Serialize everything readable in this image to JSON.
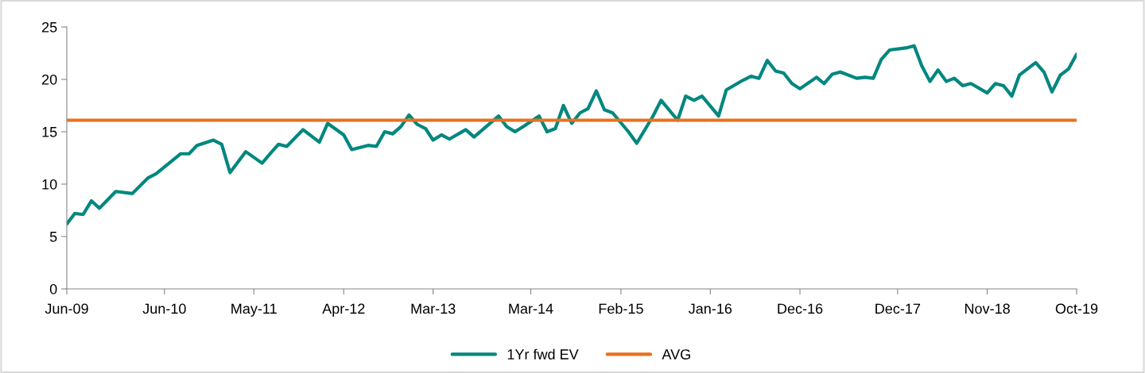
{
  "chart_data": {
    "type": "line",
    "x": [
      "2009-06",
      "2009-07",
      "2009-08",
      "2009-09",
      "2009-10",
      "2009-12",
      "2010-02",
      "2010-04",
      "2010-05",
      "2010-08",
      "2010-09",
      "2010-10",
      "2010-12",
      "2011-01",
      "2011-02",
      "2011-04",
      "2011-06",
      "2011-07",
      "2011-08",
      "2011-09",
      "2011-11",
      "2012-01",
      "2012-02",
      "2012-04",
      "2012-05",
      "2012-07",
      "2012-08",
      "2012-09",
      "2012-10",
      "2012-11",
      "2012-12",
      "2013-01",
      "2013-02",
      "2013-03",
      "2013-04",
      "2013-05",
      "2013-07",
      "2013-08",
      "2013-11",
      "2013-12",
      "2014-01",
      "2014-02",
      "2014-04",
      "2014-05",
      "2014-06",
      "2014-07",
      "2014-08",
      "2014-09",
      "2014-10",
      "2014-11",
      "2014-12",
      "2015-01",
      "2015-03",
      "2015-04",
      "2015-06",
      "2015-07",
      "2015-09",
      "2015-10",
      "2015-11",
      "2015-12",
      "2016-02",
      "2016-03",
      "2016-05",
      "2016-06",
      "2016-07",
      "2016-08",
      "2016-09",
      "2016-10",
      "2016-11",
      "2016-12",
      "2017-02",
      "2017-03",
      "2017-04",
      "2017-05",
      "2017-07",
      "2017-08",
      "2017-09",
      "2017-10",
      "2017-11",
      "2018-01",
      "2018-02",
      "2018-03",
      "2018-04",
      "2018-05",
      "2018-06",
      "2018-07",
      "2018-08",
      "2018-09",
      "2018-11",
      "2018-12",
      "2019-01",
      "2019-02",
      "2019-03",
      "2019-05",
      "2019-06",
      "2019-07",
      "2019-08",
      "2019-09",
      "2019-10"
    ],
    "series": [
      {
        "name": "1Yr fwd EV",
        "color": "#00877f",
        "values": [
          6.2,
          7.2,
          7.1,
          8.4,
          7.7,
          9.3,
          9.1,
          10.6,
          11.0,
          12.9,
          12.9,
          13.7,
          14.2,
          13.8,
          11.1,
          13.1,
          12.0,
          12.9,
          13.8,
          13.6,
          15.2,
          14.0,
          15.8,
          14.7,
          13.3,
          13.7,
          13.6,
          15.0,
          14.8,
          15.5,
          16.6,
          15.7,
          15.3,
          14.2,
          14.7,
          14.3,
          15.2,
          14.5,
          16.5,
          15.5,
          15.0,
          15.5,
          16.5,
          15.0,
          15.3,
          17.5,
          15.8,
          16.8,
          17.2,
          18.9,
          17.1,
          16.8,
          15.0,
          13.9,
          16.5,
          18.0,
          16.1,
          18.4,
          18.0,
          18.4,
          16.5,
          19.0,
          19.9,
          20.3,
          20.1,
          21.8,
          20.8,
          20.6,
          19.6,
          19.1,
          20.2,
          19.6,
          20.5,
          20.7,
          20.1,
          20.2,
          20.1,
          21.9,
          22.8,
          23.0,
          23.2,
          21.3,
          19.8,
          20.9,
          19.8,
          20.1,
          19.4,
          19.6,
          18.7,
          19.6,
          19.4,
          18.4,
          20.4,
          21.6,
          20.7,
          18.8,
          20.4,
          21.0,
          22.4
        ]
      },
      {
        "name": "AVG",
        "color": "#e9711c",
        "x": [
          "2009-06",
          "2019-10"
        ],
        "values": [
          16.1,
          16.1
        ]
      }
    ],
    "xlim": [
      "2009-06",
      "2019-10"
    ],
    "xticks": [
      {
        "value": "2009-06",
        "label": "Jun-09"
      },
      {
        "value": "2010-06",
        "label": "Jun-10"
      },
      {
        "value": "2011-05",
        "label": "May-11"
      },
      {
        "value": "2012-04",
        "label": "Apr-12"
      },
      {
        "value": "2013-03",
        "label": "Mar-13"
      },
      {
        "value": "2014-03",
        "label": "Mar-14"
      },
      {
        "value": "2015-02",
        "label": "Feb-15"
      },
      {
        "value": "2016-01",
        "label": "Jan-16"
      },
      {
        "value": "2016-12",
        "label": "Dec-16"
      },
      {
        "value": "2017-12",
        "label": "Dec-17"
      },
      {
        "value": "2018-11",
        "label": "Nov-18"
      },
      {
        "value": "2019-10",
        "label": "Oct-19"
      }
    ],
    "ylim": [
      0,
      25
    ],
    "yticks": [
      0,
      5,
      10,
      15,
      20,
      25
    ],
    "grid": false,
    "legend": "bottom",
    "marker": "none",
    "line_style": "solid"
  }
}
